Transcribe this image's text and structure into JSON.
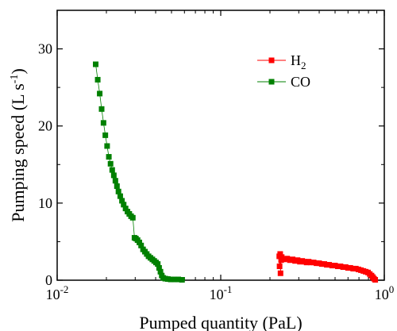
{
  "chart_data": {
    "type": "scatter",
    "xlabel": "Pumped quantity (PaL)",
    "ylabel_parts": {
      "base": "Pumping speed (L s",
      "sup": "-1",
      "end": ")"
    },
    "xscale": "log",
    "xlim": [
      0.01,
      1
    ],
    "ylim": [
      0,
      35
    ],
    "x_ticks": [
      {
        "base": "10",
        "exp": "-2",
        "value": 0.01
      },
      {
        "base": "10",
        "exp": "-1",
        "value": 0.1
      },
      {
        "base": "10",
        "exp": "0",
        "value": 1
      }
    ],
    "y_ticks": [
      "0",
      "10",
      "20",
      "30"
    ],
    "y_tick_values": [
      0,
      10,
      20,
      30
    ],
    "legend_position": "top-right",
    "series": [
      {
        "name": "H₂",
        "name_base": "H",
        "name_sub": "2",
        "color": "#ff0000",
        "points": [
          [
            0.228,
            3.1
          ],
          [
            0.229,
            1.8
          ],
          [
            0.231,
            3.4
          ],
          [
            0.232,
            0.9
          ],
          [
            0.234,
            2.6
          ],
          [
            0.236,
            3.0
          ],
          [
            0.245,
            2.7
          ],
          [
            0.255,
            2.8
          ],
          [
            0.265,
            2.6
          ],
          [
            0.275,
            2.7
          ],
          [
            0.285,
            2.5
          ],
          [
            0.295,
            2.6
          ],
          [
            0.305,
            2.4
          ],
          [
            0.315,
            2.5
          ],
          [
            0.325,
            2.4
          ],
          [
            0.335,
            2.3
          ],
          [
            0.345,
            2.4
          ],
          [
            0.355,
            2.3
          ],
          [
            0.37,
            2.3
          ],
          [
            0.385,
            2.2
          ],
          [
            0.4,
            2.2
          ],
          [
            0.415,
            2.1
          ],
          [
            0.43,
            2.1
          ],
          [
            0.445,
            2.0
          ],
          [
            0.46,
            2.0
          ],
          [
            0.48,
            1.9
          ],
          [
            0.5,
            1.9
          ],
          [
            0.52,
            1.8
          ],
          [
            0.54,
            1.8
          ],
          [
            0.56,
            1.7
          ],
          [
            0.58,
            1.7
          ],
          [
            0.6,
            1.6
          ],
          [
            0.62,
            1.6
          ],
          [
            0.645,
            1.5
          ],
          [
            0.67,
            1.5
          ],
          [
            0.695,
            1.4
          ],
          [
            0.72,
            1.3
          ],
          [
            0.745,
            1.2
          ],
          [
            0.77,
            1.1
          ],
          [
            0.795,
            1.0
          ],
          [
            0.815,
            0.8
          ],
          [
            0.835,
            0.6
          ],
          [
            0.85,
            0.4
          ],
          [
            0.865,
            0.2
          ],
          [
            0.88,
            0.05
          ]
        ]
      },
      {
        "name": "CO",
        "name_base": "CO",
        "name_sub": "",
        "color": "#008000",
        "points": [
          [
            0.0172,
            28.0
          ],
          [
            0.0177,
            26.0
          ],
          [
            0.0182,
            24.2
          ],
          [
            0.0187,
            22.2
          ],
          [
            0.0192,
            20.4
          ],
          [
            0.0197,
            18.8
          ],
          [
            0.0202,
            17.4
          ],
          [
            0.0207,
            16.0
          ],
          [
            0.0212,
            15.1
          ],
          [
            0.0217,
            14.3
          ],
          [
            0.0222,
            13.6
          ],
          [
            0.0227,
            12.9
          ],
          [
            0.0232,
            12.2
          ],
          [
            0.0237,
            11.5
          ],
          [
            0.0243,
            10.9
          ],
          [
            0.0249,
            10.3
          ],
          [
            0.0255,
            9.8
          ],
          [
            0.0262,
            9.3
          ],
          [
            0.0269,
            8.9
          ],
          [
            0.0276,
            8.6
          ],
          [
            0.0283,
            8.3
          ],
          [
            0.029,
            8.1
          ],
          [
            0.0297,
            5.5
          ],
          [
            0.0303,
            5.4
          ],
          [
            0.031,
            5.2
          ],
          [
            0.0318,
            4.9
          ],
          [
            0.0326,
            4.5
          ],
          [
            0.0335,
            4.0
          ],
          [
            0.0344,
            3.7
          ],
          [
            0.0353,
            3.4
          ],
          [
            0.0362,
            3.1
          ],
          [
            0.0372,
            2.9
          ],
          [
            0.0382,
            2.7
          ],
          [
            0.0392,
            2.5
          ],
          [
            0.0402,
            2.3
          ],
          [
            0.0412,
            2.1
          ],
          [
            0.042,
            1.6
          ],
          [
            0.0428,
            1.1
          ],
          [
            0.0436,
            0.6
          ],
          [
            0.0445,
            0.3
          ],
          [
            0.0458,
            0.2
          ],
          [
            0.0475,
            0.15
          ],
          [
            0.0495,
            0.1
          ],
          [
            0.052,
            0.1
          ],
          [
            0.055,
            0.1
          ],
          [
            0.058,
            0.05
          ]
        ]
      }
    ]
  }
}
